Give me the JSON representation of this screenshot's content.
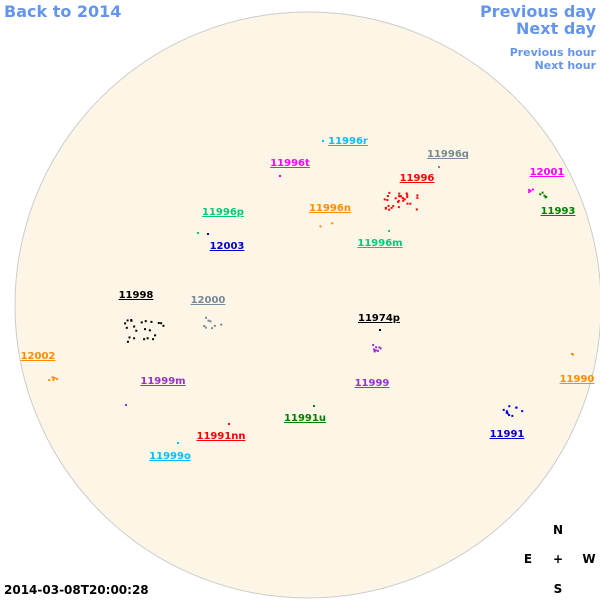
{
  "nav": {
    "back": "Back to 2014",
    "previous_day": "Previous day",
    "next_day": "Next day",
    "previous_hour": "Previous hour",
    "next_hour": "Next hour"
  },
  "timestamp": "2014-03-08T20:00:28",
  "compass": {
    "north": "N",
    "east": "E",
    "center": "+",
    "west": "W",
    "south": "S"
  },
  "regions": [
    {
      "label": "11996r",
      "color": "#00bfff"
    },
    {
      "label": "11996t",
      "color": "#ff00ff"
    },
    {
      "label": "11996q",
      "color": "#778899"
    },
    {
      "label": "11996",
      "color": "#ff0000"
    },
    {
      "label": "12001",
      "color": "#ff00ff"
    },
    {
      "label": "11993",
      "color": "#008000"
    },
    {
      "label": "11996p",
      "color": "#00cc77"
    },
    {
      "label": "11996n",
      "color": "#ff8c00"
    },
    {
      "label": "12003",
      "color": "#0000cd"
    },
    {
      "label": "11996m",
      "color": "#00cc77"
    },
    {
      "label": "11998",
      "color": "#000000"
    },
    {
      "label": "12000",
      "color": "#778899"
    },
    {
      "label": "11974p",
      "color": "#000000"
    },
    {
      "label": "12002",
      "color": "#ff8c00"
    },
    {
      "label": "11999m",
      "color": "#9932cc"
    },
    {
      "label": "11999",
      "color": "#9932cc"
    },
    {
      "label": "11990",
      "color": "#ff8c00"
    },
    {
      "label": "11991u",
      "color": "#008000"
    },
    {
      "label": "11991nn",
      "color": "#ff0000"
    },
    {
      "label": "11991",
      "color": "#0000cd"
    },
    {
      "label": "11999o",
      "color": "#00bfff"
    }
  ]
}
